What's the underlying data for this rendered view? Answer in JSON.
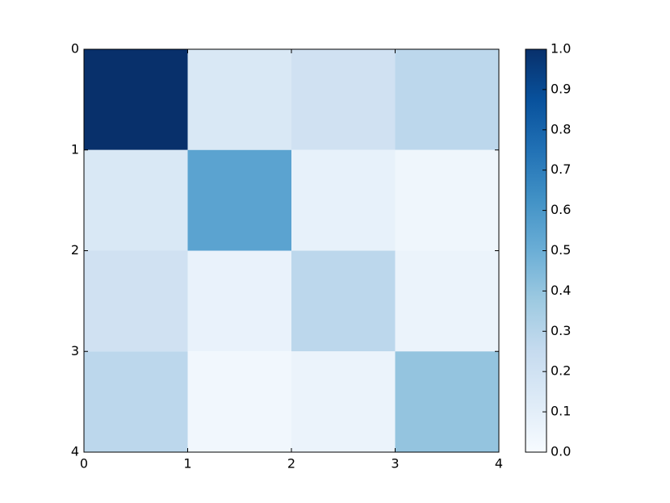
{
  "chart_data": {
    "type": "heatmap",
    "values": [
      [
        1.0,
        0.15,
        0.2,
        0.28
      ],
      [
        0.15,
        0.55,
        0.08,
        0.04
      ],
      [
        0.2,
        0.07,
        0.28,
        0.06
      ],
      [
        0.28,
        0.03,
        0.06,
        0.4
      ]
    ],
    "colormap": "Blues",
    "xlim": [
      0,
      4
    ],
    "xticks": [
      0,
      1,
      2,
      3,
      4
    ],
    "ylim": [
      4,
      0
    ],
    "yticks": [
      0,
      1,
      2,
      3,
      4
    ],
    "clim": [
      0,
      1
    ],
    "cticks": [
      {
        "value": 0,
        "label": "0.0"
      },
      {
        "value": 0.1,
        "label": "0.1"
      },
      {
        "value": 0.2,
        "label": "0.2"
      },
      {
        "value": 0.3,
        "label": "0.3"
      },
      {
        "value": 0.4,
        "label": "0.4"
      },
      {
        "value": 0.5,
        "label": "0.5"
      },
      {
        "value": 0.6,
        "label": "0.6"
      },
      {
        "value": 0.7,
        "label": "0.7"
      },
      {
        "value": 0.8,
        "label": "0.8"
      },
      {
        "value": 0.9,
        "label": "0.9"
      },
      {
        "value": 1.0,
        "label": "1.0"
      }
    ]
  }
}
